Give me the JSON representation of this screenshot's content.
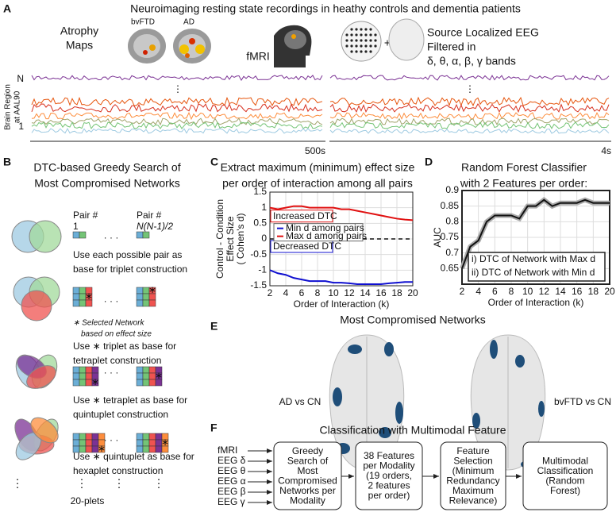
{
  "panel_a": {
    "letter": "A",
    "title": "Neuroimaging resting state recordings in heathy controls and dementia patients",
    "atrophy_label": [
      "Atrophy",
      "Maps"
    ],
    "bvftd": "bvFTD",
    "ad": "AD",
    "fmri": "fMRI",
    "plus": "+",
    "eeg_label": [
      "Source Localized EEG",
      "Filtered in",
      "δ, θ, α, β, γ bands"
    ],
    "region_top": "N",
    "region_bottom": "1",
    "region_axis": [
      "Brain Region",
      "at AAL90"
    ],
    "vdots": "⋮",
    "time_left": "500s",
    "time_right": "4s"
  },
  "panel_b": {
    "letter": "B",
    "title": [
      "DTC-based Greedy Search of",
      "Most Compromised Networks"
    ],
    "pair_label": "Pair #",
    "pair_first": "1",
    "pair_last": "N(N-1)/2",
    "hdots": "· · ·",
    "note": [
      "∗ Selected Network",
      "based on effect size"
    ],
    "steps": [
      [
        "Use each possible pair as",
        "base for triplet construction"
      ],
      [
        "Use ∗ triplet as base for",
        "tetraplet construction"
      ],
      [
        "Use ∗ tetraplet as base for",
        "quintuplet construction"
      ],
      [
        "Use ∗ quintuplet as base for",
        "hexaplet construction"
      ]
    ],
    "vdots": "⋮",
    "final": "20-plets"
  },
  "panel_e": {
    "letter": "E",
    "title": "Most Compromised Networks",
    "left": "AD vs CN",
    "right": "bvFTD vs CN"
  },
  "panel_f": {
    "letter": "F",
    "title": "Classification with Multimodal Feature",
    "inputs": [
      "fMRI",
      "EEG δ",
      "EEG θ",
      "EEG α",
      "EEG β",
      "EEG γ"
    ],
    "boxes": [
      [
        "Greedy",
        "Search of",
        "Most",
        "Compromised",
        "Networks per",
        "Modality"
      ],
      [
        "38 Features",
        "per Modality",
        "(19 orders,",
        "2 features",
        "per order)"
      ],
      [
        "Feature",
        "Selection",
        "(Minimum",
        "Redundancy",
        "Maximum",
        "Relevance)"
      ],
      [
        "Multimodal",
        "Classification",
        "(Random",
        "Forest)"
      ]
    ]
  },
  "chart_data": [
    {
      "type": "line",
      "panel_letter": "C",
      "title": [
        "Extract maximum (minimum) effect size",
        "per order of interaction among all pairs"
      ],
      "x_label": "Order of Interaction (k)",
      "y_label": [
        "Control - Condition",
        "Effect Size",
        "( Cohen's d)"
      ],
      "x": [
        2,
        3,
        4,
        5,
        6,
        7,
        8,
        9,
        10,
        11,
        12,
        13,
        14,
        15,
        16,
        17,
        18,
        19,
        20
      ],
      "series": [
        {
          "name": "Min d among pairs",
          "color": "#1010d0",
          "values": [
            -1.0,
            -1.1,
            -1.15,
            -1.25,
            -1.3,
            -1.35,
            -1.35,
            -1.35,
            -1.4,
            -1.4,
            -1.42,
            -1.45,
            -1.45,
            -1.45,
            -1.45,
            -1.42,
            -1.4,
            -1.38,
            -1.38
          ]
        },
        {
          "name": "Max d among pairs",
          "color": "#e01010",
          "values": [
            1.0,
            0.95,
            1.0,
            1.05,
            1.05,
            1.0,
            1.0,
            1.0,
            1.0,
            0.95,
            0.95,
            0.9,
            0.85,
            0.8,
            0.75,
            0.7,
            0.65,
            0.62,
            0.6
          ]
        }
      ],
      "reference_line": 0,
      "annotations": [
        {
          "text": "Increased DTC",
          "color": "#e01010"
        },
        {
          "text": "Decreased DTC",
          "color": "#1010d0"
        }
      ],
      "xlim": [
        2,
        20
      ],
      "xticks": [
        2,
        4,
        6,
        8,
        10,
        12,
        14,
        16,
        18,
        20
      ],
      "ylim": [
        -1.5,
        1.5
      ],
      "yticks": [
        -1.5,
        -1,
        -0.5,
        0,
        0.5,
        1,
        1.5
      ],
      "grid": true
    },
    {
      "type": "line",
      "panel_letter": "D",
      "title": [
        "Random Forest Classifier",
        "with 2 Features per order:"
      ],
      "x_label": "Order of Interaction (k)",
      "y_label": [
        "AUC"
      ],
      "x": [
        2,
        3,
        4,
        5,
        6,
        7,
        8,
        9,
        10,
        11,
        12,
        13,
        14,
        15,
        16,
        17,
        18,
        19,
        20
      ],
      "series": [
        {
          "color": "#111111",
          "values": [
            0.65,
            0.72,
            0.74,
            0.8,
            0.82,
            0.82,
            0.82,
            0.81,
            0.85,
            0.85,
            0.87,
            0.85,
            0.86,
            0.86,
            0.86,
            0.87,
            0.86,
            0.86,
            0.86
          ]
        }
      ],
      "annotations": [
        {
          "text": "i) DTC of Network with Max d",
          "color": "#e01010"
        },
        {
          "text": "ii) DTC of Network with Min d",
          "color": "#1010d0"
        }
      ],
      "xlim": [
        2,
        20
      ],
      "xticks": [
        2,
        4,
        6,
        8,
        10,
        12,
        14,
        16,
        18,
        20
      ],
      "ylim": [
        0.6,
        0.9
      ],
      "yticks": [
        0.65,
        0.7,
        0.75,
        0.8,
        0.85,
        0.9
      ],
      "grid": true
    }
  ]
}
